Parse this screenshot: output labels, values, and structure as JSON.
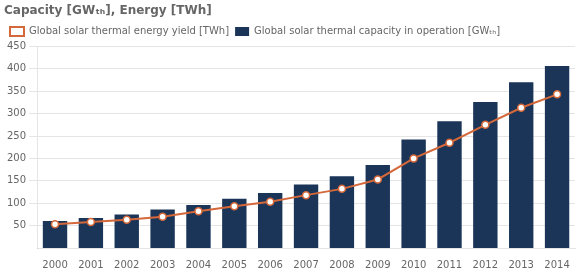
{
  "chart_data": {
    "type": "bar",
    "title": "Capacity [GWₜₕ], Energy [TWh]",
    "categories": [
      2000,
      2001,
      2002,
      2003,
      2004,
      2005,
      2006,
      2007,
      2008,
      2009,
      2010,
      2011,
      2012,
      2013,
      2014
    ],
    "series": [
      {
        "name": "Global solar thermal capacity in operation [GWₜₕ]",
        "type": "bar",
        "color": "#1a3558",
        "values": [
          60,
          67,
          75,
          86,
          96,
          110,
          123,
          142,
          160,
          185,
          242,
          283,
          326,
          370,
          406
        ]
      },
      {
        "name": "Global solar thermal energy yield [TWh]",
        "type": "line",
        "color": "#d4683a",
        "marker": "circle",
        "values": [
          53,
          58,
          63,
          70,
          82,
          93,
          103,
          118,
          132,
          153,
          200,
          235,
          275,
          313,
          343
        ]
      }
    ],
    "ylim": [
      0,
      450
    ],
    "yticks": [
      50,
      100,
      150,
      200,
      250,
      300,
      350,
      400,
      450
    ],
    "grid": true,
    "legend": "upper left"
  }
}
